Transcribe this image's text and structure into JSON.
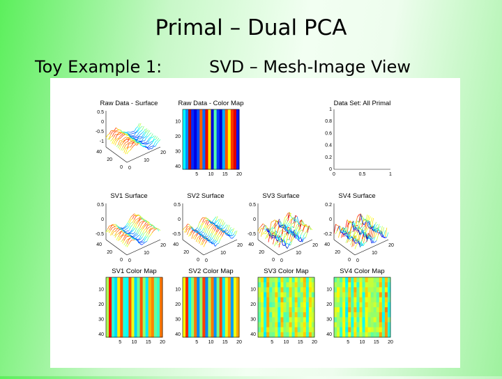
{
  "header": {
    "title": "Primal – Dual PCA",
    "subtitle_left": "Toy Example 1:",
    "subtitle_right": "SVD – Mesh-Image View"
  },
  "figure": {
    "surfaces": [
      {
        "title": "Raw Data - Surface",
        "z_ticks": [
          "0.5",
          "0",
          "-0.5",
          "-1"
        ],
        "y_ticks": [
          "40",
          "20",
          "0"
        ],
        "x_ticks": [
          "0",
          "10",
          "20"
        ]
      },
      {
        "title": "SV1 Surface",
        "z_ticks": [
          "0.5",
          "0",
          "-0.5"
        ],
        "y_ticks": [
          "40",
          "20",
          "0"
        ],
        "x_ticks": [
          "0",
          "10",
          "20"
        ]
      },
      {
        "title": "SV2 Surface",
        "z_ticks": [
          "0.5",
          "0",
          "-0.5"
        ],
        "y_ticks": [
          "40",
          "20",
          "0"
        ],
        "x_ticks": [
          "0",
          "10",
          "20"
        ]
      },
      {
        "title": "SV3 Surface",
        "z_ticks": [
          "0.5",
          "0",
          "-0.5"
        ],
        "y_ticks": [
          "40",
          "20",
          "0"
        ],
        "x_ticks": [
          "0",
          "10",
          "20"
        ]
      },
      {
        "title": "SV4 Surface",
        "z_ticks": [
          "0.2",
          "0",
          "-0.2"
        ],
        "y_ticks": [
          "40",
          "20",
          "0"
        ],
        "x_ticks": [
          "0",
          "10",
          "20"
        ]
      }
    ],
    "color_maps": [
      {
        "title": "Raw Data - Color Map",
        "y_ticks": [
          "10",
          "20",
          "30",
          "40"
        ],
        "x_ticks": [
          "5",
          "10",
          "15",
          "20"
        ]
      },
      {
        "title": "SV1 Color Map",
        "y_ticks": [
          "10",
          "20",
          "30",
          "40"
        ],
        "x_ticks": [
          "5",
          "10",
          "15",
          "20"
        ]
      },
      {
        "title": "SV2 Color Map",
        "y_ticks": [
          "10",
          "20",
          "30",
          "40"
        ],
        "x_ticks": [
          "5",
          "10",
          "15",
          "20"
        ]
      },
      {
        "title": "SV3 Color Map",
        "y_ticks": [
          "10",
          "20",
          "30",
          "40"
        ],
        "x_ticks": [
          "5",
          "10",
          "15",
          "20"
        ]
      },
      {
        "title": "SV4 Color Map",
        "y_ticks": [
          "10",
          "20",
          "30",
          "40"
        ],
        "x_ticks": [
          "5",
          "10",
          "15",
          "20"
        ]
      }
    ],
    "axes": {
      "title": "Data Set: All Primal",
      "y_ticks": [
        "1",
        "0.8",
        "0.6",
        "0.4",
        "0.2",
        "0"
      ],
      "x_ticks": [
        "0",
        "0.5",
        "1"
      ]
    }
  }
}
